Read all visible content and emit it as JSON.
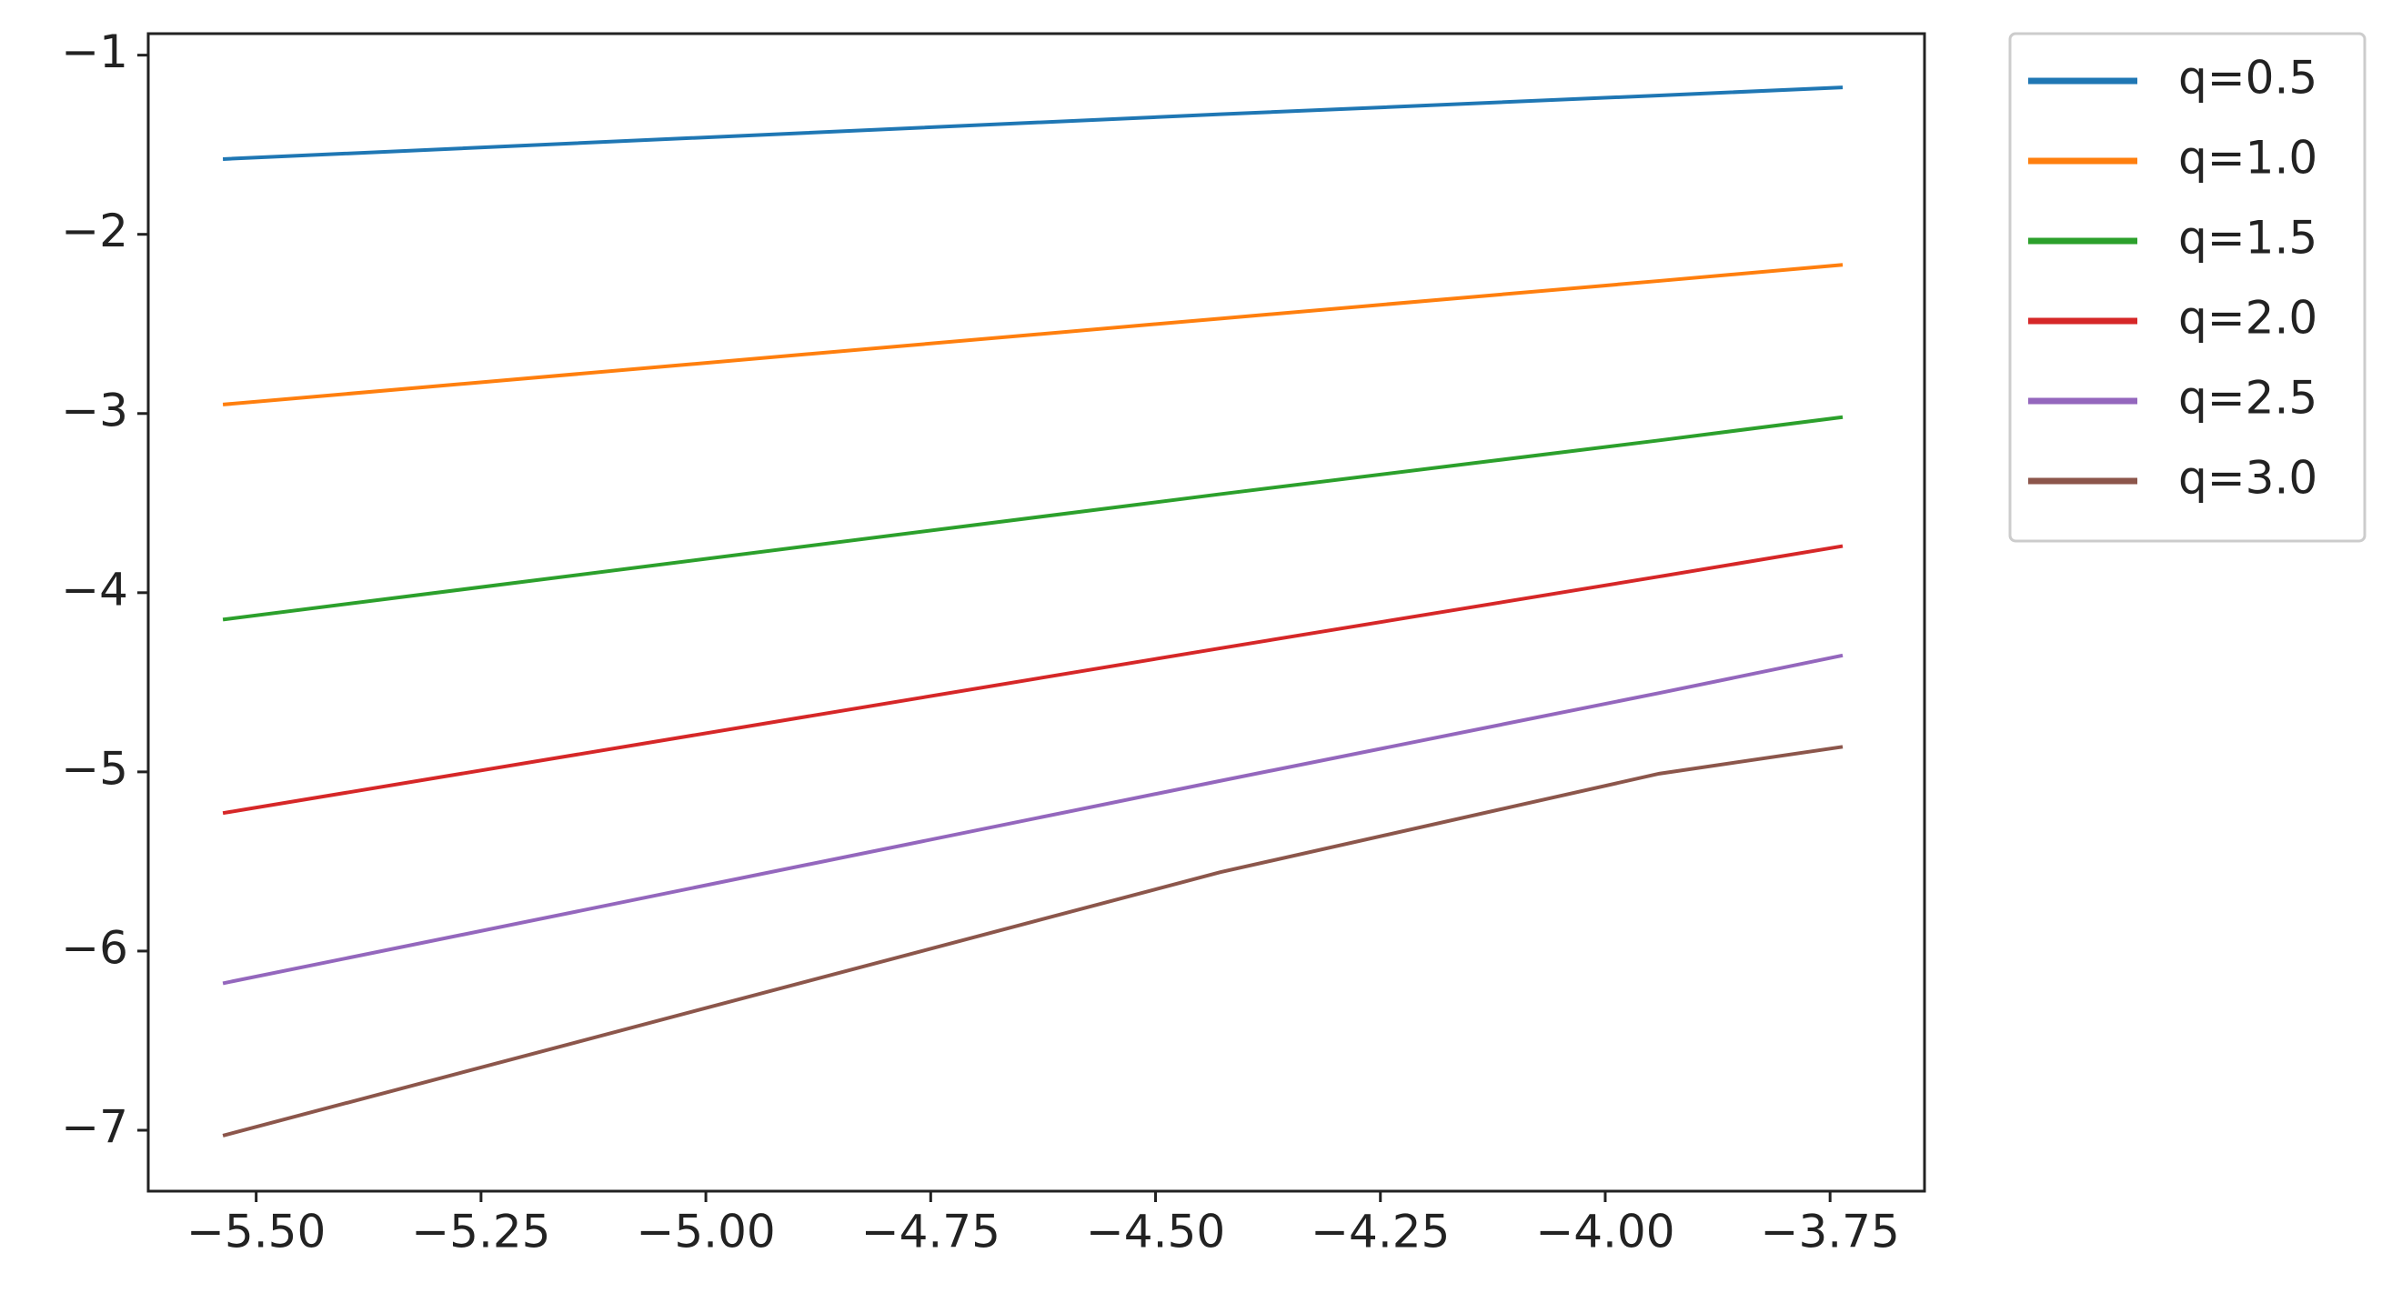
{
  "chart_data": {
    "type": "line",
    "x": [
      -5.537,
      -4.428,
      -3.94,
      -3.736
    ],
    "series": [
      {
        "name": "q=0.5",
        "color": "#1f77b4",
        "values": [
          -1.58,
          -1.33,
          -1.225,
          -1.18
        ]
      },
      {
        "name": "q=1.0",
        "color": "#ff7f0e",
        "values": [
          -2.95,
          -2.47,
          -2.26,
          -2.17
        ]
      },
      {
        "name": "q=1.5",
        "color": "#2ca02c",
        "values": [
          -4.15,
          -3.45,
          -3.15,
          -3.02
        ]
      },
      {
        "name": "q=2.0",
        "color": "#d62728",
        "values": [
          -5.23,
          -4.31,
          -3.91,
          -3.74
        ]
      },
      {
        "name": "q=2.5",
        "color": "#9467bd",
        "values": [
          -6.18,
          -5.05,
          -4.56,
          -4.35
        ]
      },
      {
        "name": "q=3.0",
        "color": "#8c564b",
        "values": [
          -7.03,
          -5.56,
          -5.01,
          -4.86
        ]
      }
    ],
    "xlim": [
      -5.62,
      -3.645
    ],
    "ylim": [
      -7.34,
      -0.88
    ],
    "xticks": [
      {
        "value": -5.5,
        "label": "−5.50"
      },
      {
        "value": -5.25,
        "label": "−5.25"
      },
      {
        "value": -5.0,
        "label": "−5.00"
      },
      {
        "value": -4.75,
        "label": "−4.75"
      },
      {
        "value": -4.5,
        "label": "−4.50"
      },
      {
        "value": -4.25,
        "label": "−4.25"
      },
      {
        "value": -4.0,
        "label": "−4.00"
      },
      {
        "value": -3.75,
        "label": "−3.75"
      }
    ],
    "yticks": [
      {
        "value": -1,
        "label": "−1"
      },
      {
        "value": -2,
        "label": "−2"
      },
      {
        "value": -3,
        "label": "−3"
      },
      {
        "value": -4,
        "label": "−4"
      },
      {
        "value": -5,
        "label": "−5"
      },
      {
        "value": -6,
        "label": "−6"
      },
      {
        "value": -7,
        "label": "−7"
      }
    ],
    "grid": false,
    "legend": "outside-upper-right"
  }
}
